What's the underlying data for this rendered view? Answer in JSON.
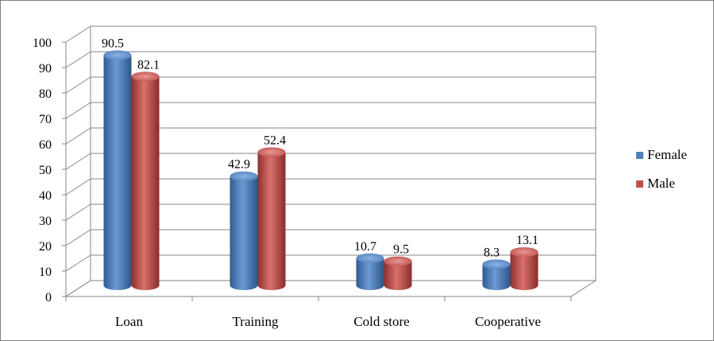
{
  "chart_data": {
    "type": "bar",
    "categories": [
      "Loan",
      "Training",
      "Cold store",
      "Cooperative"
    ],
    "series": [
      {
        "name": "Female",
        "values": [
          90.5,
          42.9,
          10.7,
          8.3
        ],
        "labels": [
          "90.5",
          "42.9",
          "10.7",
          "8.3"
        ],
        "color": "#4f81bd"
      },
      {
        "name": "Male",
        "values": [
          82.1,
          52.4,
          9.5,
          13.1
        ],
        "labels": [
          "82.1",
          "52.4",
          "9.5",
          "13.1"
        ],
        "color": "#c0504d"
      }
    ],
    "yticks": [
      "0",
      "10",
      "20",
      "30",
      "40",
      "50",
      "60",
      "70",
      "80",
      "90",
      "100"
    ],
    "ylim": [
      0,
      100
    ],
    "grid": true,
    "three_d": true,
    "legend": "right"
  }
}
